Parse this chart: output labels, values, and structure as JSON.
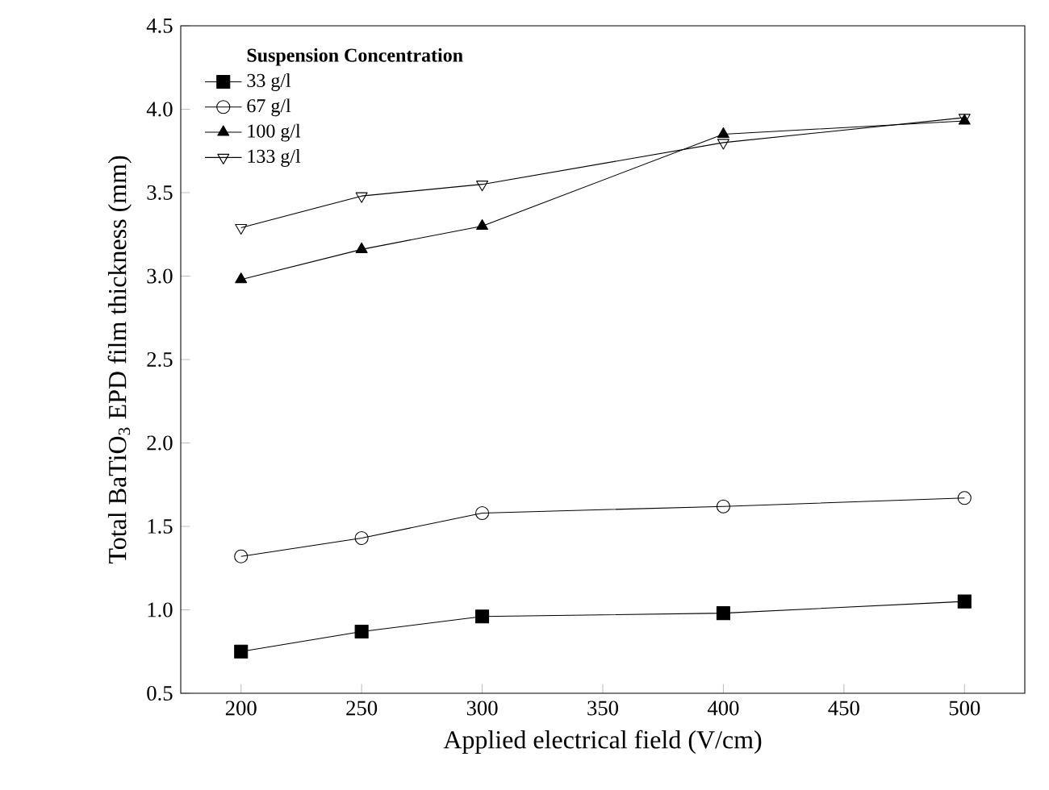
{
  "chart_data": {
    "type": "line",
    "xlabel": "Applied electrical field (V/cm)",
    "ylabel": "Total BaTiO$_{3}$ EPD film thickness (mm)",
    "legend_title": "Suspension Concentration",
    "legend": "top left",
    "grid": false,
    "line_style": "solid",
    "x": [
      200,
      250,
      300,
      400,
      500
    ],
    "xlim": [
      175,
      525
    ],
    "xticks": [
      200,
      250,
      300,
      350,
      400,
      450,
      500
    ],
    "ylim": [
      0.5,
      4.5
    ],
    "yticks": [
      0.5,
      {
        "value": 1,
        "label": "1.0"
      },
      1.5,
      {
        "value": 2,
        "label": "2.0"
      },
      2.5,
      {
        "value": 3,
        "label": "3.0"
      },
      3.5,
      {
        "value": 4,
        "label": "4.0"
      },
      4.5
    ],
    "series": [
      {
        "name": "33 g/l",
        "color": "#000000",
        "marker": "square",
        "values": [
          0.75,
          0.87,
          0.96,
          0.98,
          1.05
        ]
      },
      {
        "name": "67 g/l",
        "color": "#000000",
        "marker": "circle",
        "values": [
          1.32,
          1.43,
          1.58,
          1.62,
          1.67
        ]
      },
      {
        "name": "100 g/l",
        "color": "#000000",
        "marker": "triangle",
        "values": [
          2.98,
          3.16,
          3.3,
          3.85,
          3.93
        ]
      },
      {
        "name": "133 g/l",
        "color": "#000000",
        "marker": "triangle-down",
        "values": [
          3.29,
          3.48,
          3.55,
          3.8,
          3.95
        ]
      }
    ]
  }
}
